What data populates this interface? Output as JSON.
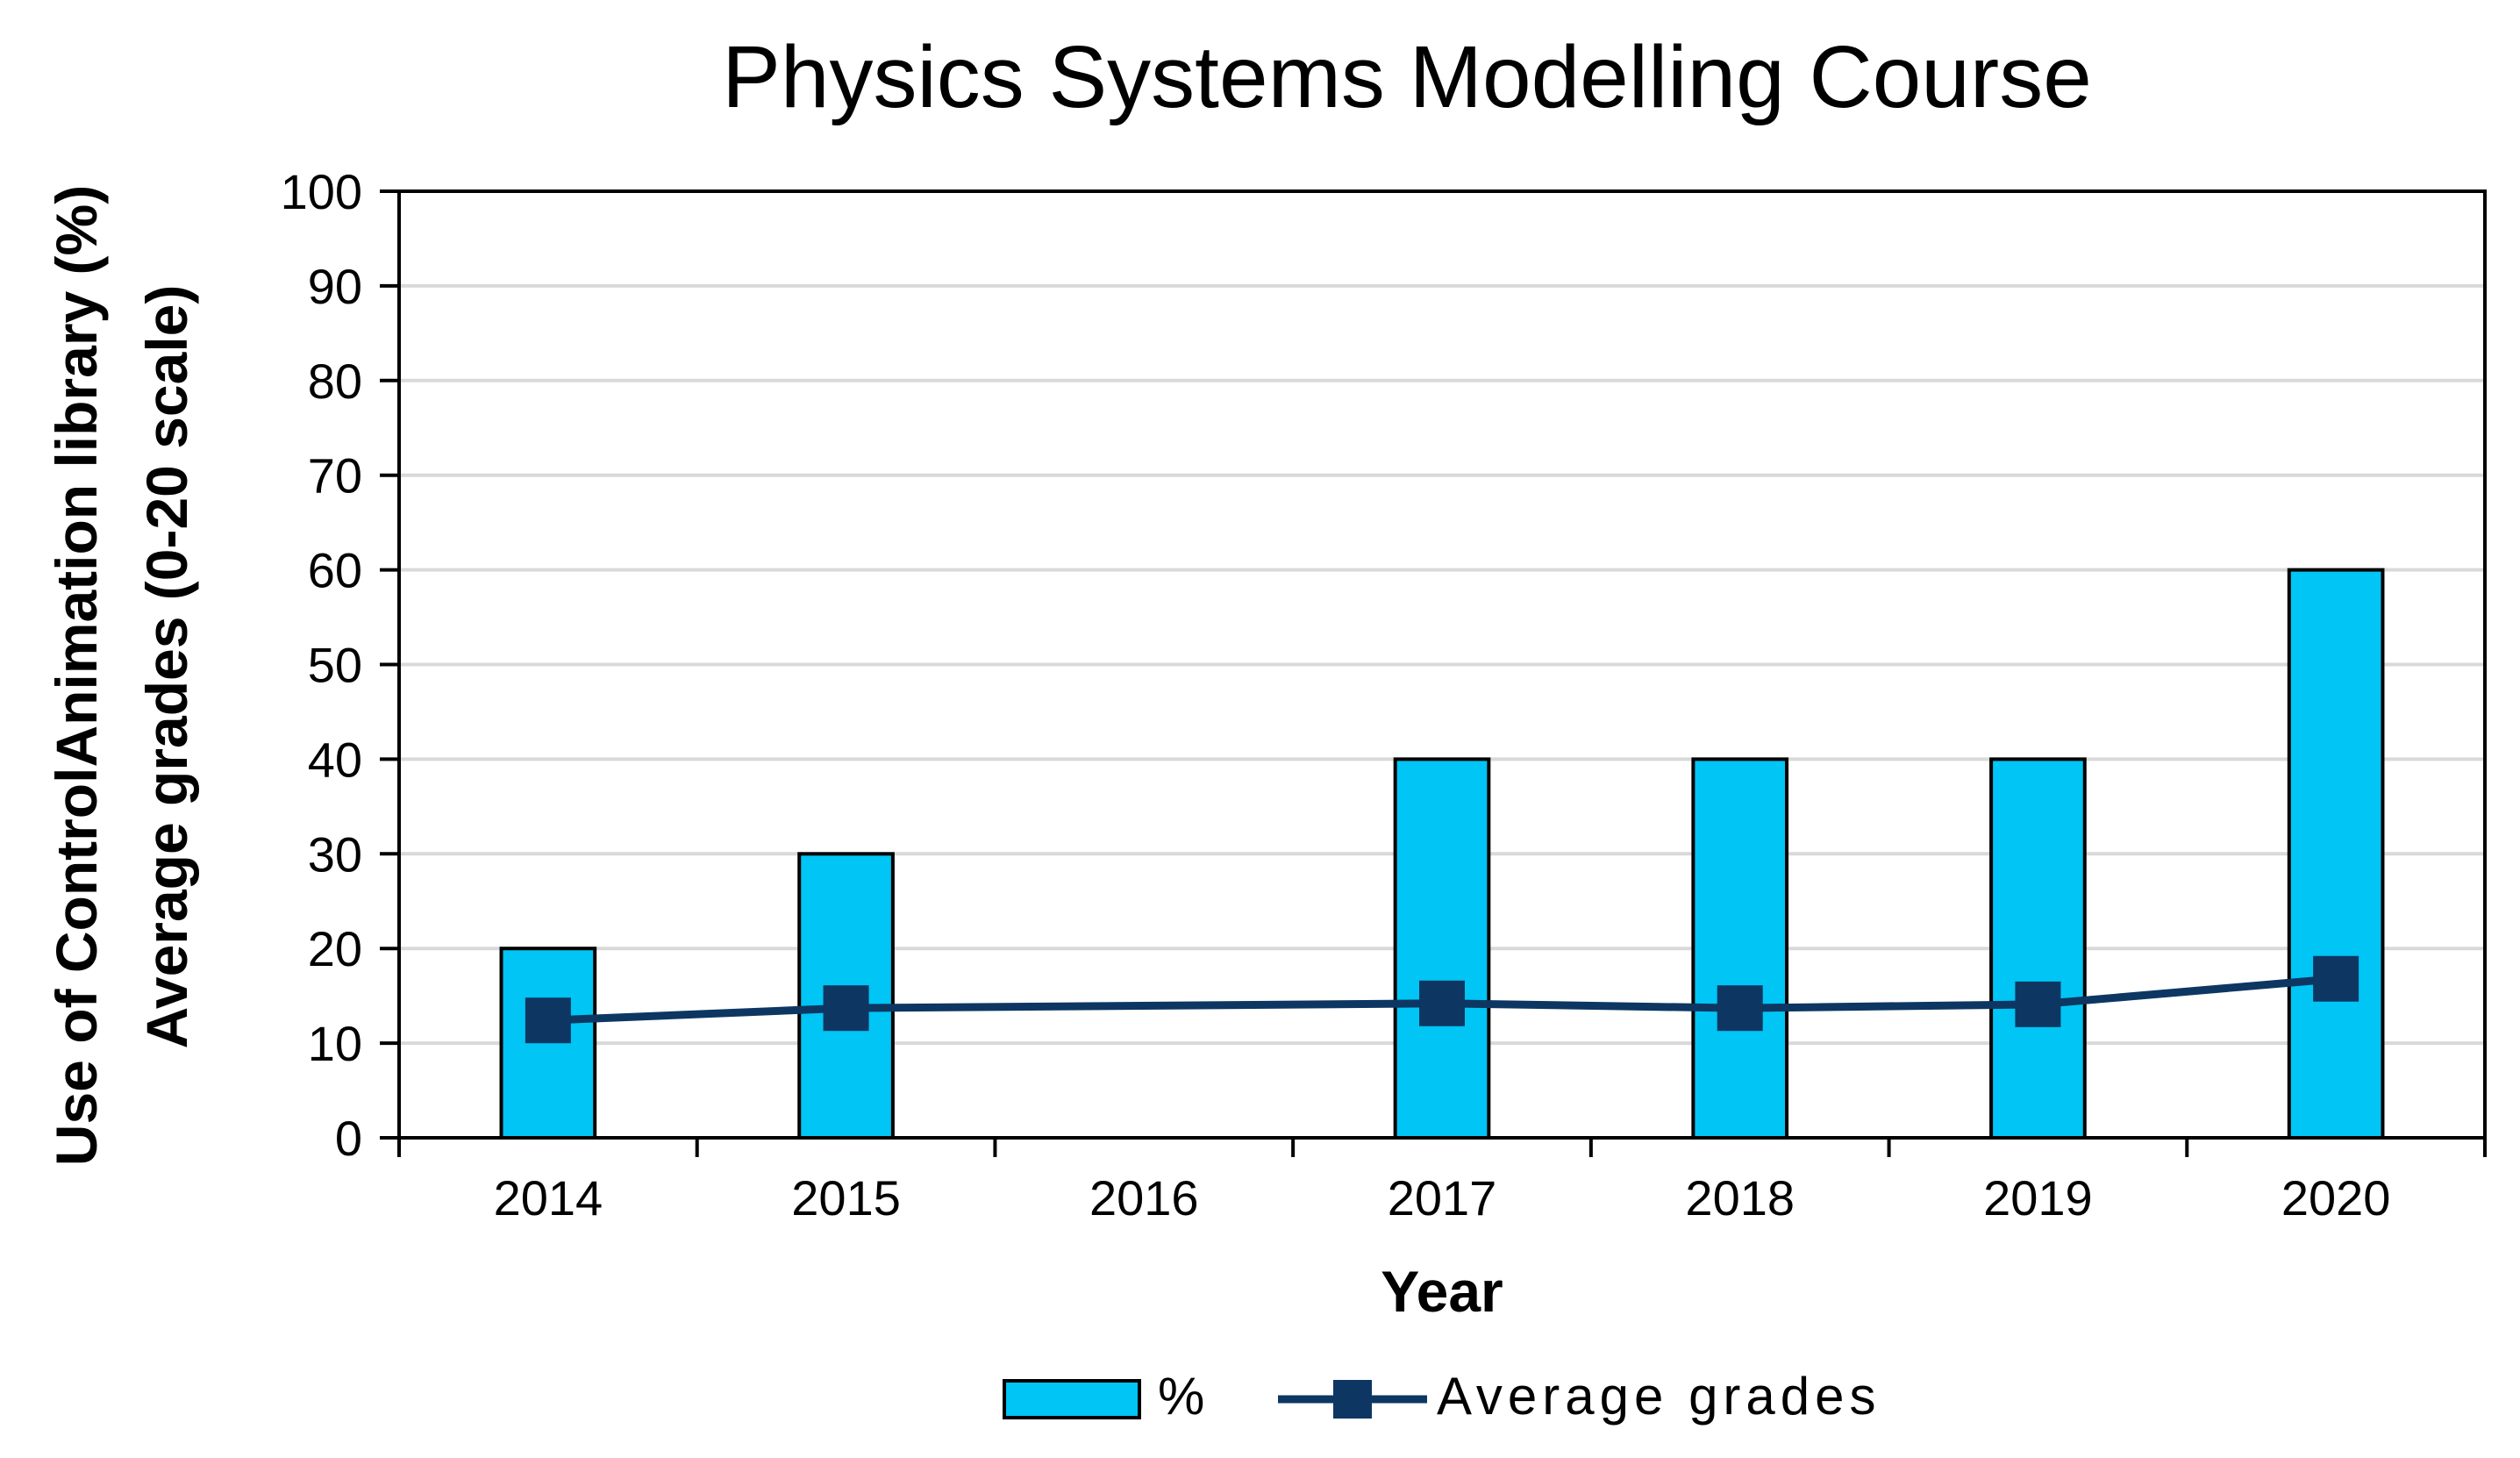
{
  "chart_data": {
    "type": "bar",
    "title": "Physics Systems Modelling Course",
    "xlabel": "Year",
    "ylabel_lines": [
      "Use of ControlAnimation library (%)",
      "Average grades (0-20 scale)"
    ],
    "categories": [
      "2014",
      "2015",
      "2016",
      "2017",
      "2018",
      "2019",
      "2020"
    ],
    "ylim": [
      0,
      100
    ],
    "yticks": [
      0,
      10,
      20,
      30,
      40,
      50,
      60,
      70,
      80,
      90,
      100
    ],
    "grid": true,
    "legend_position": "bottom-center",
    "series": [
      {
        "name": "%",
        "type": "bar",
        "color": "#00C5F5",
        "values": [
          20,
          30,
          null,
          40,
          40,
          40,
          60
        ]
      },
      {
        "name": "Average grades",
        "type": "line",
        "color": "#0D3762",
        "marker": "square",
        "values": [
          12.4,
          13.7,
          null,
          14.2,
          13.7,
          14.1,
          16.8
        ]
      }
    ]
  }
}
